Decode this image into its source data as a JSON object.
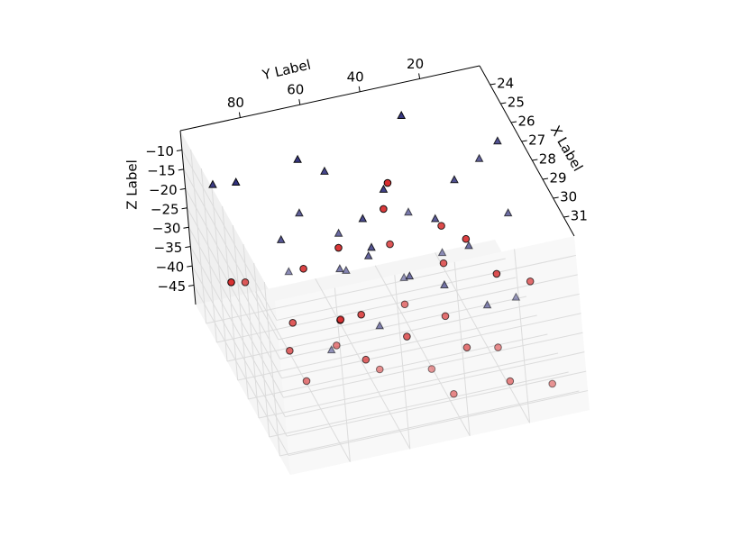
{
  "chart_data": {
    "type": "scatter3d",
    "xlabel": "X Label",
    "ylabel": "Y Label",
    "zlabel": "Z Label",
    "xlim": [
      23,
      32
    ],
    "ylim": [
      0,
      100
    ],
    "zlim": [
      -50,
      -5
    ],
    "xticks": [
      24,
      25,
      26,
      27,
      28,
      29,
      30,
      31
    ],
    "yticks": [
      20,
      40,
      60,
      80
    ],
    "zticks": [
      {
        "value": -10,
        "label": "−10"
      },
      {
        "value": -15,
        "label": "−15"
      },
      {
        "value": -20,
        "label": "−20"
      },
      {
        "value": -25,
        "label": "−25"
      },
      {
        "value": -30,
        "label": "−30"
      },
      {
        "value": -35,
        "label": "−35"
      },
      {
        "value": -40,
        "label": "−40"
      },
      {
        "value": -45,
        "label": "−45"
      }
    ],
    "grid": true,
    "series": [
      {
        "marker": "o",
        "color": "#d62728",
        "x": [
          24.5,
          25.2,
          26.1,
          27.3,
          28.0,
          29.4,
          30.2,
          31.1,
          23.8,
          24.9,
          26.6,
          27.9,
          28.7,
          29.9,
          31.5,
          25.7,
          26.9,
          28.3,
          30.6,
          24.2,
          27.1,
          29.1,
          31.8,
          25.4,
          26.3,
          28.9,
          30.9,
          23.5,
          27.6,
          29.6
        ],
        "y": [
          40,
          70,
          55,
          30,
          85,
          50,
          20,
          65,
          90,
          15,
          45,
          60,
          35,
          75,
          10,
          25,
          80,
          5,
          40,
          55,
          95,
          30,
          50,
          60,
          10,
          70,
          25,
          35,
          45,
          85
        ],
        "z": [
          -28,
          -35,
          -45,
          -30,
          -40,
          -27,
          -48,
          -33,
          -42,
          -38,
          -26,
          -47,
          -36,
          -31,
          -44,
          -29,
          -39,
          -34,
          -46,
          -37,
          -25,
          -43,
          -32,
          -49,
          -41,
          -30,
          -35,
          -27,
          -45,
          -40
        ]
      },
      {
        "marker": "^",
        "color": "#2b2b7a",
        "x": [
          24.0,
          25.1,
          26.4,
          27.2,
          28.5,
          29.3,
          30.1,
          31.3,
          23.6,
          24.7,
          26.0,
          27.8,
          28.9,
          30.4,
          31.7,
          25.5,
          27.0,
          28.2,
          29.8,
          24.4,
          26.8,
          29.0,
          31.0,
          25.9,
          27.5,
          30.7,
          23.9,
          28.6,
          26.2,
          30.0
        ],
        "y": [
          30,
          60,
          80,
          15,
          45,
          70,
          25,
          55,
          85,
          40,
          5,
          65,
          35,
          90,
          20,
          50,
          75,
          10,
          60,
          95,
          30,
          45,
          80,
          20,
          55,
          40,
          65,
          25,
          50,
          70
        ],
        "z": [
          -8,
          -12,
          -20,
          -6,
          -25,
          -15,
          -28,
          -10,
          -18,
          -22,
          -9,
          -14,
          -27,
          -7,
          -19,
          -24,
          -11,
          -16,
          -29,
          -13,
          -21,
          -6,
          -26,
          -17,
          -23,
          -9,
          -14,
          -20,
          -28,
          -12
        ]
      }
    ]
  }
}
